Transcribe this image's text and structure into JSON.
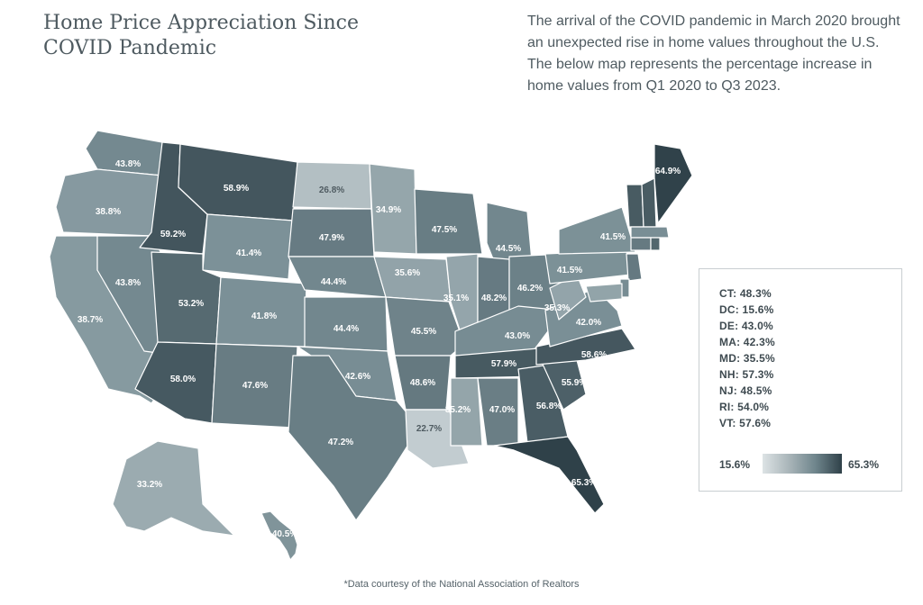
{
  "title": "Home Price Appreciation Since COVID Pandemic",
  "intro": "The arrival of the COVID pandemic in March 2020 brought an unexpected rise in home values throughout the U.S. The below map represents the percentage increase in home values from Q1 2020 to Q3 2023.",
  "colors": {
    "low": "#dde3e5",
    "mid": "#7a8f96",
    "high": "#2f4149"
  },
  "scale": {
    "min": "15.6%",
    "max": "65.3%"
  },
  "small_states": [
    {
      "abbr": "CT",
      "value": "48.3%"
    },
    {
      "abbr": "DC",
      "value": "15.6%"
    },
    {
      "abbr": "DE",
      "value": "43.0%"
    },
    {
      "abbr": "MA",
      "value": "42.3%"
    },
    {
      "abbr": "MD",
      "value": "35.5%"
    },
    {
      "abbr": "NH",
      "value": "57.3%"
    },
    {
      "abbr": "NJ",
      "value": "48.5%"
    },
    {
      "abbr": "RI",
      "value": "54.0%"
    },
    {
      "abbr": "VT",
      "value": "57.6%"
    }
  ],
  "states": [
    {
      "abbr": "WA",
      "value": 43.8,
      "label": "43.8%"
    },
    {
      "abbr": "OR",
      "value": 38.8,
      "label": "38.8%"
    },
    {
      "abbr": "CA",
      "value": 38.7,
      "label": "38.7%"
    },
    {
      "abbr": "NV",
      "value": 43.8,
      "label": "43.8%"
    },
    {
      "abbr": "ID",
      "value": 59.2,
      "label": "59.2%"
    },
    {
      "abbr": "MT",
      "value": 58.9,
      "label": "58.9%"
    },
    {
      "abbr": "WY",
      "value": 41.4,
      "label": "41.4%"
    },
    {
      "abbr": "UT",
      "value": 53.2,
      "label": "53.2%"
    },
    {
      "abbr": "AZ",
      "value": 58.0,
      "label": "58.0%"
    },
    {
      "abbr": "CO",
      "value": 41.8,
      "label": "41.8%"
    },
    {
      "abbr": "NM",
      "value": 47.6,
      "label": "47.6%"
    },
    {
      "abbr": "ND",
      "value": 26.8,
      "label": "26.8%"
    },
    {
      "abbr": "SD",
      "value": 47.9,
      "label": "47.9%"
    },
    {
      "abbr": "NE",
      "value": 44.4,
      "label": "44.4%"
    },
    {
      "abbr": "KS",
      "value": 44.4,
      "label": "44.4%"
    },
    {
      "abbr": "OK",
      "value": 42.6,
      "label": "42.6%"
    },
    {
      "abbr": "TX",
      "value": 47.2,
      "label": "47.2%"
    },
    {
      "abbr": "MN",
      "value": 34.9,
      "label": "34.9%"
    },
    {
      "abbr": "IA",
      "value": 35.6,
      "label": "35.6%"
    },
    {
      "abbr": "MO",
      "value": 45.5,
      "label": "45.5%"
    },
    {
      "abbr": "AR",
      "value": 48.6,
      "label": "48.6%"
    },
    {
      "abbr": "LA",
      "value": 22.7,
      "label": "22.7%"
    },
    {
      "abbr": "WI",
      "value": 47.5,
      "label": "47.5%"
    },
    {
      "abbr": "IL",
      "value": 35.1,
      "label": "35.1%"
    },
    {
      "abbr": "MI",
      "value": 44.5,
      "label": "44.5%"
    },
    {
      "abbr": "IN",
      "value": 48.2,
      "label": "48.2%"
    },
    {
      "abbr": "OH",
      "value": 46.2,
      "label": "46.2%"
    },
    {
      "abbr": "KY",
      "value": 43.0,
      "label": "43.0%"
    },
    {
      "abbr": "TN",
      "value": 57.9,
      "label": "57.9%"
    },
    {
      "abbr": "MS",
      "value": 35.2,
      "label": "35.2%"
    },
    {
      "abbr": "AL",
      "value": 47.0,
      "label": "47.0%"
    },
    {
      "abbr": "GA",
      "value": 56.8,
      "label": "56.8%"
    },
    {
      "abbr": "FL",
      "value": 65.3,
      "label": "65.3%"
    },
    {
      "abbr": "SC",
      "value": 55.9,
      "label": "55.9%"
    },
    {
      "abbr": "NC",
      "value": 58.6,
      "label": "58.6%"
    },
    {
      "abbr": "VA",
      "value": 42.0,
      "label": "42.0%"
    },
    {
      "abbr": "WV",
      "value": 35.3,
      "label": "35.3%"
    },
    {
      "abbr": "PA",
      "value": 41.5,
      "label": "41.5%"
    },
    {
      "abbr": "NY",
      "value": 41.5,
      "label": "41.5%"
    },
    {
      "abbr": "ME",
      "value": 64.9,
      "label": "64.9%"
    },
    {
      "abbr": "AK",
      "value": 33.2,
      "label": "33.2%"
    },
    {
      "abbr": "HI",
      "value": 40.5,
      "label": "40.5%"
    },
    {
      "abbr": "VT",
      "value": 57.6
    },
    {
      "abbr": "NH",
      "value": 57.3
    },
    {
      "abbr": "MA",
      "value": 42.3
    },
    {
      "abbr": "CT",
      "value": 48.3
    },
    {
      "abbr": "RI",
      "value": 54.0
    },
    {
      "abbr": "NJ",
      "value": 48.5
    },
    {
      "abbr": "DE",
      "value": 43.0
    },
    {
      "abbr": "MD",
      "value": 35.5
    }
  ],
  "footnote": "*Data courtesy of the National Association of Realtors"
}
